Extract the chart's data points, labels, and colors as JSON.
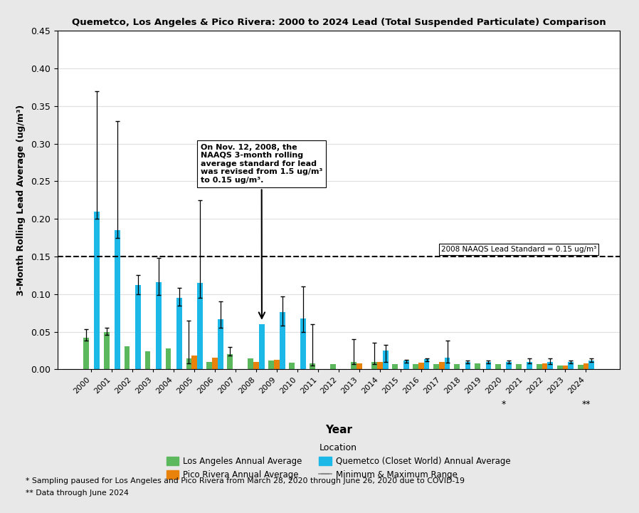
{
  "title": "Quemetco, Los Angeles & Pico Rivera: 2000 to 2024 Lead (Total Suspended Particulate) Comparison",
  "xlabel": "Year",
  "ylabel": "3-Month Rolling Lead Average (ug/m³)",
  "years": [
    2000,
    2001,
    2002,
    2003,
    2004,
    2005,
    2006,
    2007,
    2008,
    2009,
    2010,
    2011,
    2012,
    2013,
    2014,
    2015,
    2016,
    2017,
    2018,
    2019,
    2020,
    2021,
    2022,
    2023,
    2024
  ],
  "la_avg": [
    0.042,
    0.05,
    0.031,
    0.024,
    0.028,
    0.015,
    0.01,
    0.02,
    0.015,
    0.012,
    0.009,
    0.008,
    0.007,
    0.01,
    0.01,
    0.007,
    0.007,
    0.007,
    0.007,
    0.008,
    0.007,
    0.007,
    0.007,
    0.005,
    0.006
  ],
  "la_min": [
    0.038,
    0.046,
    null,
    null,
    null,
    0.008,
    null,
    0.018,
    null,
    null,
    null,
    0.005,
    null,
    0.007,
    0.007,
    null,
    null,
    null,
    null,
    null,
    null,
    null,
    null,
    null,
    null
  ],
  "la_max": [
    0.053,
    0.055,
    null,
    null,
    null,
    0.065,
    null,
    0.03,
    null,
    null,
    null,
    0.06,
    null,
    0.04,
    0.035,
    null,
    null,
    null,
    null,
    null,
    null,
    null,
    null,
    null,
    null
  ],
  "pico_avg": [
    null,
    null,
    null,
    null,
    null,
    0.018,
    0.016,
    null,
    0.01,
    0.013,
    null,
    null,
    null,
    0.008,
    0.01,
    null,
    0.009,
    0.01,
    null,
    null,
    null,
    null,
    0.008,
    0.005,
    0.008
  ],
  "quemetco_avg": [
    0.21,
    0.185,
    0.112,
    0.116,
    0.095,
    0.115,
    0.067,
    null,
    0.06,
    0.076,
    0.068,
    null,
    null,
    null,
    0.025,
    0.012,
    0.014,
    0.016,
    0.01,
    0.01,
    0.01,
    0.01,
    0.01,
    0.01,
    0.012
  ],
  "quemetco_min": [
    0.2,
    0.175,
    0.1,
    0.099,
    0.085,
    0.095,
    0.055,
    null,
    null,
    0.058,
    0.05,
    null,
    null,
    null,
    0.01,
    0.009,
    0.011,
    0.009,
    0.008,
    0.008,
    0.008,
    0.008,
    0.007,
    0.008,
    0.01
  ],
  "quemetco_max": [
    0.37,
    0.33,
    0.125,
    0.148,
    0.108,
    0.225,
    0.09,
    null,
    null,
    0.097,
    0.11,
    null,
    null,
    null,
    0.033,
    0.013,
    0.015,
    0.038,
    0.012,
    0.012,
    0.012,
    0.015,
    0.015,
    0.012,
    0.015
  ],
  "la_color": "#5CB85C",
  "pico_color": "#E8820A",
  "quemetco_color": "#1CB9E8",
  "naaqs_level": 0.15,
  "ylim": [
    0,
    0.45
  ],
  "yticks": [
    0.0,
    0.05,
    0.1,
    0.15,
    0.2,
    0.25,
    0.3,
    0.35,
    0.4,
    0.45
  ],
  "annotation_text": "On Nov. 12, 2008, the\nNAAQS 3-month rolling\naverage standard for lead\nwas revised from 1.5 ug/m³\nto 0.15 ug/m³.",
  "naaqs_label": "2008 NAAQS Lead Standard = 0.15 ug/m³",
  "footnote1": "* Sampling paused for Los Angeles and Pico Rivera from March 28, 2020 through June 26, 2020 due to COVID-19",
  "footnote2": "** Data through June 2024",
  "background_color": "#E8E8E8"
}
